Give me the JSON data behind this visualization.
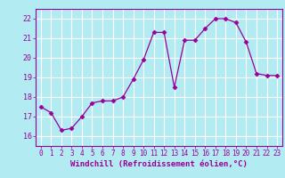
{
  "x": [
    0,
    1,
    2,
    3,
    4,
    5,
    6,
    7,
    8,
    9,
    10,
    11,
    12,
    13,
    14,
    15,
    16,
    17,
    18,
    19,
    20,
    21,
    22,
    23
  ],
  "y": [
    17.5,
    17.2,
    16.3,
    16.4,
    17.0,
    17.7,
    17.8,
    17.8,
    18.0,
    18.9,
    19.9,
    21.3,
    21.3,
    18.5,
    20.9,
    20.9,
    21.5,
    22.0,
    22.0,
    21.8,
    20.8,
    19.2,
    19.1,
    19.1
  ],
  "line_color": "#990099",
  "marker": "D",
  "markersize": 2.5,
  "linewidth": 0.9,
  "bg_color": "#b2ebf2",
  "plot_bg_color": "#b2ebf2",
  "grid_color": "#ffffff",
  "xlabel": "Windchill (Refroidissement éolien,°C)",
  "xlabel_color": "#990099",
  "tick_color": "#990099",
  "ylim": [
    15.5,
    22.5
  ],
  "yticks": [
    16,
    17,
    18,
    19,
    20,
    21,
    22
  ],
  "xlim": [
    -0.5,
    23.5
  ],
  "xticks": [
    0,
    1,
    2,
    3,
    4,
    5,
    6,
    7,
    8,
    9,
    10,
    11,
    12,
    13,
    14,
    15,
    16,
    17,
    18,
    19,
    20,
    21,
    22,
    23
  ]
}
